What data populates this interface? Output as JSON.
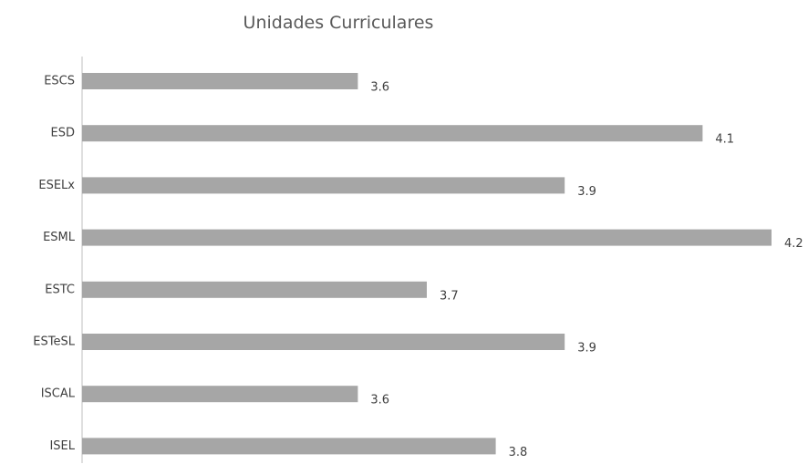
{
  "chart_data": {
    "type": "bar",
    "orientation": "horizontal",
    "title": "Unidades Curriculares",
    "xlabel": "",
    "ylabel": "",
    "categories": [
      "ESCS",
      "ESD",
      "ESELx",
      "ESML",
      "ESTC",
      "ESTeSL",
      "ISCAL",
      "ISEL"
    ],
    "values": [
      3.6,
      4.1,
      3.9,
      4.2,
      3.7,
      3.9,
      3.6,
      3.8
    ],
    "value_labels": [
      "3.6",
      "4.1",
      "3.9",
      "4.2",
      "3.7",
      "3.9",
      "3.6",
      "3.8"
    ],
    "xlim": [
      3.2,
      4.2
    ],
    "grid": false,
    "legend": "none",
    "bar_color": "#a6a6a6",
    "axis_color": "#bfbfbf"
  }
}
